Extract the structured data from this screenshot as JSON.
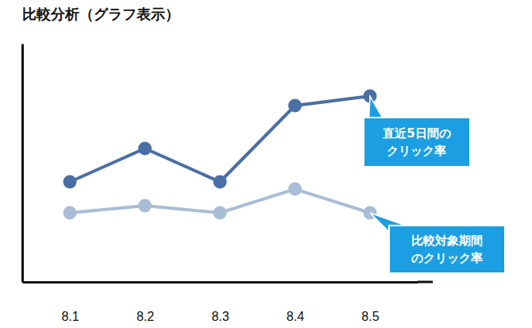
{
  "chart_data": {
    "type": "line",
    "title": "比較分析（グラフ表示）",
    "categories": [
      "8.1",
      "8.2",
      "8.3",
      "8.4",
      "8.5"
    ],
    "series": [
      {
        "name": "直近5日間の\nクリック率",
        "color": "#4a6fa5",
        "marker": "circle",
        "values": [
          42,
          56,
          42,
          74,
          78
        ]
      },
      {
        "name": "比較対象期間\nのクリック率",
        "color": "#a9bdd6",
        "marker": "circle",
        "values": [
          29,
          32,
          29,
          39,
          29
        ]
      }
    ],
    "ylim": [
      0,
      100
    ],
    "yticks": [],
    "tick_labels": "x"
  }
}
